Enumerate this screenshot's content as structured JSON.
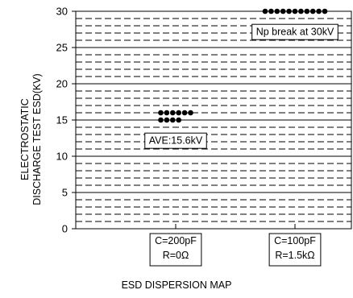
{
  "chart_data": {
    "type": "scatter",
    "title": "",
    "xlabel": "ESD DISPERSION MAP",
    "ylabel_lines": [
      "ELECTROSTATIC",
      "DISCHARGE TEST ESD(KV)"
    ],
    "ylim": [
      0,
      30
    ],
    "yticks": [
      0,
      5,
      10,
      15,
      20,
      25,
      30
    ],
    "grid": "dashed horizontal every 1 kV, solid every 5 kV",
    "categories": [
      {
        "lines": [
          "C=200pF",
          "R=0Ω"
        ]
      },
      {
        "lines": [
          "C=100pF",
          "R=1.5kΩ"
        ]
      }
    ],
    "series": [
      {
        "category_index": 0,
        "points": [
          {
            "y": 15,
            "count": 4
          },
          {
            "y": 16,
            "count": 6
          }
        ]
      },
      {
        "category_index": 1,
        "points": [
          {
            "y": 30,
            "count": 11
          }
        ]
      }
    ],
    "annotations": [
      {
        "text": "AVE:15.6kV",
        "category_index": 0,
        "y": 12.2
      },
      {
        "text": "Np break at 30kV",
        "category_index": 1,
        "y": 27.2
      }
    ]
  }
}
